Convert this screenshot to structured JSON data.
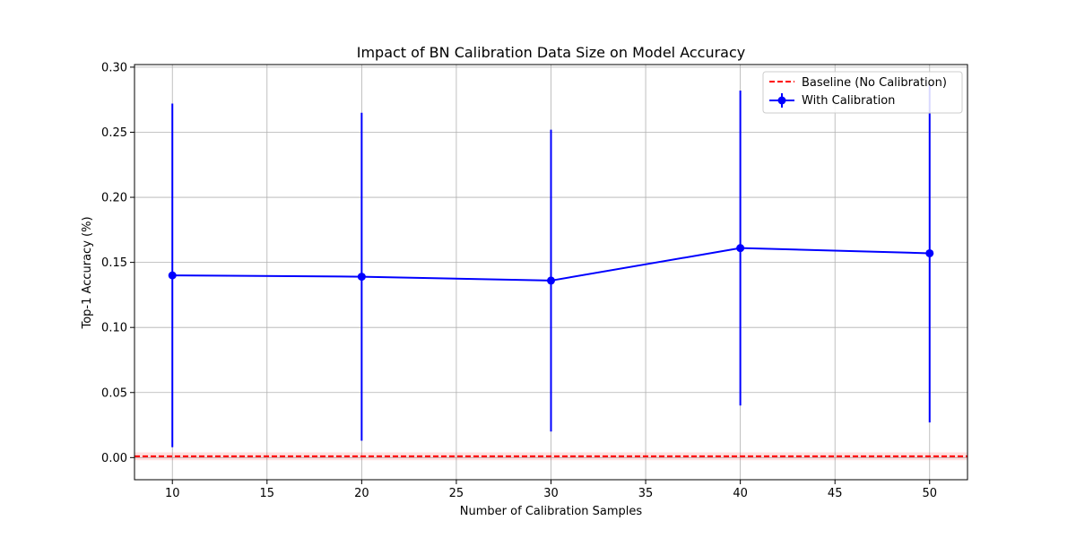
{
  "chart_data": {
    "type": "line",
    "title": "Impact of BN Calibration Data Size on Model Accuracy",
    "xlabel": "Number of Calibration Samples",
    "ylabel": "Top-1 Accuracy (%)",
    "xlim": [
      8,
      52
    ],
    "ylim": [
      -0.017,
      0.302
    ],
    "x_ticks": [
      10,
      15,
      20,
      25,
      30,
      35,
      40,
      45,
      50
    ],
    "x_tick_labels": [
      "10",
      "15",
      "20",
      "25",
      "30",
      "35",
      "40",
      "45",
      "50"
    ],
    "y_ticks": [
      0.0,
      0.05,
      0.1,
      0.15,
      0.2,
      0.25,
      0.3
    ],
    "y_tick_labels": [
      "0.00",
      "0.05",
      "0.10",
      "0.15",
      "0.20",
      "0.25",
      "0.30"
    ],
    "grid": true,
    "legend_position": "top-right",
    "series": [
      {
        "name": "With Calibration",
        "color": "#0000ff",
        "marker": "circle",
        "x": [
          10,
          20,
          30,
          40,
          50
        ],
        "y": [
          0.14,
          0.139,
          0.136,
          0.161,
          0.157
        ],
        "yerr": [
          0.132,
          0.126,
          0.116,
          0.121,
          0.13
        ]
      }
    ],
    "baseline": {
      "name": "Baseline (No Calibration)",
      "color": "#ff0000",
      "linestyle": "dashed",
      "y": 0.001,
      "band": [
        -0.002,
        0.004
      ]
    }
  }
}
